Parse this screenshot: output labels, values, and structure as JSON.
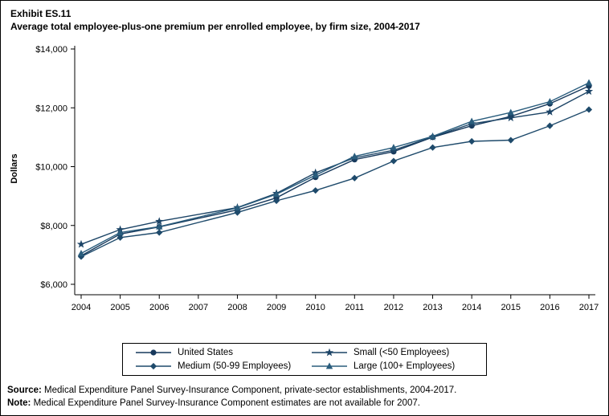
{
  "header": {
    "exhibit": "Exhibit ES.11",
    "title": "Average total employee-plus-one premium per enrolled employee, by firm size, 2004-2017"
  },
  "chart_data": {
    "type": "line",
    "title": "Average total employee-plus-one premium per enrolled employee, by firm size, 2004-2017",
    "xlabel": "",
    "ylabel": "Dollars",
    "ylim": [
      6000,
      14000
    ],
    "grid": false,
    "legend_position": "bottom",
    "categories": [
      2004,
      2005,
      2006,
      2007,
      2008,
      2009,
      2010,
      2011,
      2012,
      2013,
      2014,
      2015,
      2016,
      2017
    ],
    "yticks": [
      {
        "value": 6000,
        "label": "$6,000"
      },
      {
        "value": 8000,
        "label": "$8,000"
      },
      {
        "value": 10000,
        "label": "$10,000"
      },
      {
        "value": 12000,
        "label": "$12,000"
      },
      {
        "value": 14000,
        "label": "$14,000"
      }
    ],
    "series": [
      {
        "name": "United States",
        "marker": "circle",
        "color": "#17395c",
        "values": [
          6970,
          7710,
          7950,
          null,
          8530,
          8940,
          9640,
          10240,
          10510,
          11000,
          11390,
          11710,
          12140,
          12740
        ]
      },
      {
        "name": "Small (<50 Employees)",
        "marker": "star",
        "color": "#1c4466",
        "values": [
          7360,
          7860,
          8140,
          null,
          8610,
          9090,
          9790,
          10300,
          10560,
          11010,
          11460,
          11660,
          11860,
          12560
        ]
      },
      {
        "name": "Medium (50-99 Employees)",
        "marker": "diamond",
        "color": "#1e4a6b",
        "values": [
          6940,
          7590,
          7760,
          null,
          8440,
          8840,
          9190,
          9610,
          10190,
          10650,
          10860,
          10900,
          11390,
          11940
        ]
      },
      {
        "name": "Large (100+ Employees)",
        "marker": "triangle",
        "color": "#2a5d7d",
        "values": [
          7050,
          7760,
          7960,
          null,
          8600,
          9060,
          9710,
          10350,
          10650,
          11030,
          11540,
          11840,
          12210,
          12850
        ]
      }
    ]
  },
  "footnotes": {
    "source_label": "Source:",
    "source_text": " Medical Expenditure Panel Survey-Insurance Component, private-sector establishments, 2004-2017.",
    "note_label": "Note:",
    "note_text": " Medical Expenditure Panel Survey-Insurance Component estimates are not available for 2007."
  }
}
